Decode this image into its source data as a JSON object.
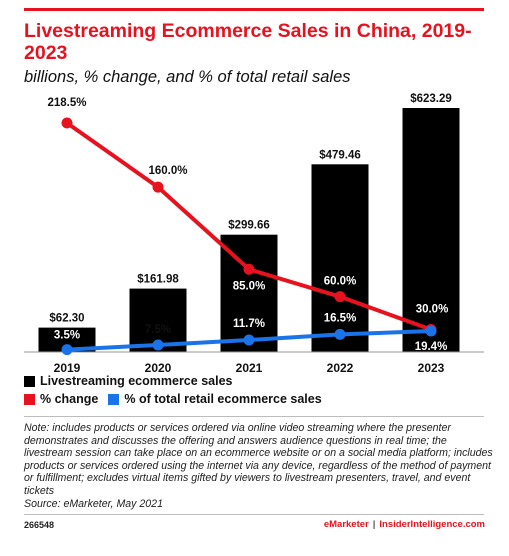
{
  "header": {
    "title": "Livestreaming Ecommerce Sales in China, 2019-2023",
    "subtitle": "billions, % change, and % of total retail sales"
  },
  "chart_data": {
    "type": "bar",
    "categories": [
      "2019",
      "2020",
      "2021",
      "2022",
      "2023"
    ],
    "series": [
      {
        "name": "Livestreaming ecommerce sales",
        "kind": "bar",
        "color": "#000000",
        "values": [
          62.3,
          161.98,
          299.66,
          479.46,
          623.29
        ],
        "labels": [
          "$62.30",
          "$161.98",
          "$299.66",
          "$479.46",
          "$623.29"
        ]
      },
      {
        "name": "% change",
        "kind": "line",
        "color": "#e8121e",
        "values": [
          218.5,
          160.0,
          85.0,
          60.0,
          30.0
        ],
        "labels": [
          "218.5%",
          "160.0%",
          "85.0%",
          "60.0%",
          "30.0%"
        ]
      },
      {
        "name": "% of total retail ecommerce sales",
        "kind": "line",
        "color": "#1a73e8",
        "values": [
          3.5,
          7.5,
          11.7,
          16.5,
          19.4
        ],
        "labels": [
          "3.5%",
          "7.5%",
          "11.7%",
          "16.5%",
          "19.4%"
        ]
      }
    ],
    "legend_placement": "bottom",
    "grid": false
  },
  "legend": {
    "bars": "Livestreaming ecommerce sales",
    "change": "% change",
    "share": "% of total retail ecommerce sales"
  },
  "note": "Note: includes products or services ordered via online video streaming where the presenter demonstrates and discusses the offering and answers audience questions in real time; the livestream session can take place on an ecommerce website or on a social media platform; includes products or services ordered using the internet via any device, regardless of the method of payment or fulfillment; excludes virtual items gifted by viewers to livestream presenters, travel, and event tickets",
  "source": "Source: eMarketer, May 2021",
  "footer": {
    "chart_id": "266548",
    "brand_left": "eMarketer",
    "separator": "|",
    "brand_right": "InsiderIntelligence.com"
  },
  "colors": {
    "accent": "#e8121e",
    "bar": "#000000",
    "share": "#1a73e8"
  }
}
